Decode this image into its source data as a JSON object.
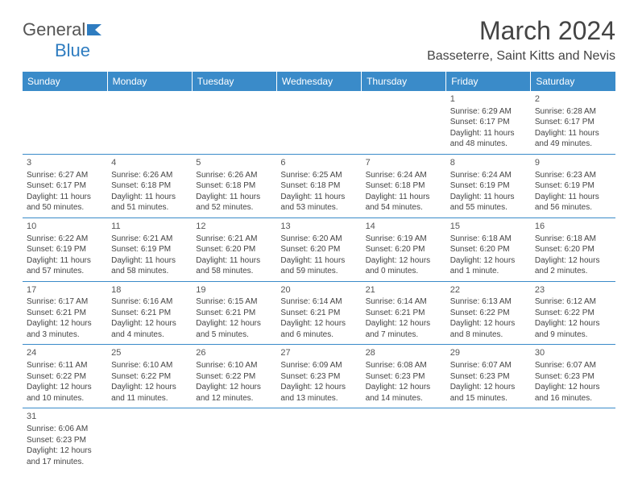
{
  "logo": {
    "text_general": "General",
    "text_blue": "Blue"
  },
  "title": "March 2024",
  "location": "Basseterre, Saint Kitts and Nevis",
  "colors": {
    "header_bg": "#3a8bc9",
    "header_text": "#ffffff",
    "cell_border": "#3a8bc9",
    "body_text": "#444444",
    "logo_blue": "#2e7cc0"
  },
  "day_headers": [
    "Sunday",
    "Monday",
    "Tuesday",
    "Wednesday",
    "Thursday",
    "Friday",
    "Saturday"
  ],
  "weeks": [
    [
      null,
      null,
      null,
      null,
      null,
      {
        "n": "1",
        "sr": "Sunrise: 6:29 AM",
        "ss": "Sunset: 6:17 PM",
        "dl": "Daylight: 11 hours and 48 minutes."
      },
      {
        "n": "2",
        "sr": "Sunrise: 6:28 AM",
        "ss": "Sunset: 6:17 PM",
        "dl": "Daylight: 11 hours and 49 minutes."
      }
    ],
    [
      {
        "n": "3",
        "sr": "Sunrise: 6:27 AM",
        "ss": "Sunset: 6:17 PM",
        "dl": "Daylight: 11 hours and 50 minutes."
      },
      {
        "n": "4",
        "sr": "Sunrise: 6:26 AM",
        "ss": "Sunset: 6:18 PM",
        "dl": "Daylight: 11 hours and 51 minutes."
      },
      {
        "n": "5",
        "sr": "Sunrise: 6:26 AM",
        "ss": "Sunset: 6:18 PM",
        "dl": "Daylight: 11 hours and 52 minutes."
      },
      {
        "n": "6",
        "sr": "Sunrise: 6:25 AM",
        "ss": "Sunset: 6:18 PM",
        "dl": "Daylight: 11 hours and 53 minutes."
      },
      {
        "n": "7",
        "sr": "Sunrise: 6:24 AM",
        "ss": "Sunset: 6:18 PM",
        "dl": "Daylight: 11 hours and 54 minutes."
      },
      {
        "n": "8",
        "sr": "Sunrise: 6:24 AM",
        "ss": "Sunset: 6:19 PM",
        "dl": "Daylight: 11 hours and 55 minutes."
      },
      {
        "n": "9",
        "sr": "Sunrise: 6:23 AM",
        "ss": "Sunset: 6:19 PM",
        "dl": "Daylight: 11 hours and 56 minutes."
      }
    ],
    [
      {
        "n": "10",
        "sr": "Sunrise: 6:22 AM",
        "ss": "Sunset: 6:19 PM",
        "dl": "Daylight: 11 hours and 57 minutes."
      },
      {
        "n": "11",
        "sr": "Sunrise: 6:21 AM",
        "ss": "Sunset: 6:19 PM",
        "dl": "Daylight: 11 hours and 58 minutes."
      },
      {
        "n": "12",
        "sr": "Sunrise: 6:21 AM",
        "ss": "Sunset: 6:20 PM",
        "dl": "Daylight: 11 hours and 58 minutes."
      },
      {
        "n": "13",
        "sr": "Sunrise: 6:20 AM",
        "ss": "Sunset: 6:20 PM",
        "dl": "Daylight: 11 hours and 59 minutes."
      },
      {
        "n": "14",
        "sr": "Sunrise: 6:19 AM",
        "ss": "Sunset: 6:20 PM",
        "dl": "Daylight: 12 hours and 0 minutes."
      },
      {
        "n": "15",
        "sr": "Sunrise: 6:18 AM",
        "ss": "Sunset: 6:20 PM",
        "dl": "Daylight: 12 hours and 1 minute."
      },
      {
        "n": "16",
        "sr": "Sunrise: 6:18 AM",
        "ss": "Sunset: 6:20 PM",
        "dl": "Daylight: 12 hours and 2 minutes."
      }
    ],
    [
      {
        "n": "17",
        "sr": "Sunrise: 6:17 AM",
        "ss": "Sunset: 6:21 PM",
        "dl": "Daylight: 12 hours and 3 minutes."
      },
      {
        "n": "18",
        "sr": "Sunrise: 6:16 AM",
        "ss": "Sunset: 6:21 PM",
        "dl": "Daylight: 12 hours and 4 minutes."
      },
      {
        "n": "19",
        "sr": "Sunrise: 6:15 AM",
        "ss": "Sunset: 6:21 PM",
        "dl": "Daylight: 12 hours and 5 minutes."
      },
      {
        "n": "20",
        "sr": "Sunrise: 6:14 AM",
        "ss": "Sunset: 6:21 PM",
        "dl": "Daylight: 12 hours and 6 minutes."
      },
      {
        "n": "21",
        "sr": "Sunrise: 6:14 AM",
        "ss": "Sunset: 6:21 PM",
        "dl": "Daylight: 12 hours and 7 minutes."
      },
      {
        "n": "22",
        "sr": "Sunrise: 6:13 AM",
        "ss": "Sunset: 6:22 PM",
        "dl": "Daylight: 12 hours and 8 minutes."
      },
      {
        "n": "23",
        "sr": "Sunrise: 6:12 AM",
        "ss": "Sunset: 6:22 PM",
        "dl": "Daylight: 12 hours and 9 minutes."
      }
    ],
    [
      {
        "n": "24",
        "sr": "Sunrise: 6:11 AM",
        "ss": "Sunset: 6:22 PM",
        "dl": "Daylight: 12 hours and 10 minutes."
      },
      {
        "n": "25",
        "sr": "Sunrise: 6:10 AM",
        "ss": "Sunset: 6:22 PM",
        "dl": "Daylight: 12 hours and 11 minutes."
      },
      {
        "n": "26",
        "sr": "Sunrise: 6:10 AM",
        "ss": "Sunset: 6:22 PM",
        "dl": "Daylight: 12 hours and 12 minutes."
      },
      {
        "n": "27",
        "sr": "Sunrise: 6:09 AM",
        "ss": "Sunset: 6:23 PM",
        "dl": "Daylight: 12 hours and 13 minutes."
      },
      {
        "n": "28",
        "sr": "Sunrise: 6:08 AM",
        "ss": "Sunset: 6:23 PM",
        "dl": "Daylight: 12 hours and 14 minutes."
      },
      {
        "n": "29",
        "sr": "Sunrise: 6:07 AM",
        "ss": "Sunset: 6:23 PM",
        "dl": "Daylight: 12 hours and 15 minutes."
      },
      {
        "n": "30",
        "sr": "Sunrise: 6:07 AM",
        "ss": "Sunset: 6:23 PM",
        "dl": "Daylight: 12 hours and 16 minutes."
      }
    ],
    [
      {
        "n": "31",
        "sr": "Sunrise: 6:06 AM",
        "ss": "Sunset: 6:23 PM",
        "dl": "Daylight: 12 hours and 17 minutes."
      },
      null,
      null,
      null,
      null,
      null,
      null
    ]
  ]
}
